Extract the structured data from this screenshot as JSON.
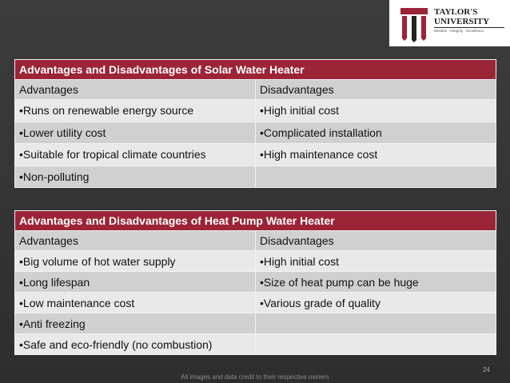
{
  "logo": {
    "name": "TAYLOR'S UNIVERSITY",
    "motto": "Wisdom · Integrity · Excellence"
  },
  "tables": [
    {
      "title": "Advantages and Disadvantages of Solar Water Heater",
      "columns": [
        "Advantages",
        "Disadvantages"
      ],
      "rows": [
        [
          "•Runs on renewable energy source",
          "•High initial cost"
        ],
        [
          "•Lower utility cost",
          "•Complicated installation"
        ],
        [
          "•Suitable for tropical climate countries",
          "•High maintenance cost"
        ],
        [
          "•Non-polluting",
          null
        ]
      ]
    },
    {
      "title": "Advantages and Disadvantages of Heat Pump Water Heater",
      "columns": [
        "Advantages",
        "Disadvantages"
      ],
      "rows": [
        [
          "•Big volume of hot water supply",
          "•High initial cost"
        ],
        [
          "•Long lifespan",
          "•Size of heat pump can be huge"
        ],
        [
          "•Low maintenance cost",
          "•Various grade of quality"
        ],
        [
          "•Anti freezing",
          null
        ],
        [
          "•Safe and eco-friendly (no combustion)",
          null
        ]
      ]
    }
  ],
  "footer": {
    "credit": "All images and data credit to their respective owners",
    "page": "24"
  }
}
